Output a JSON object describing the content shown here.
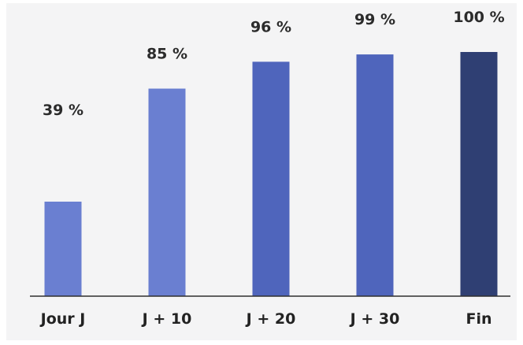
{
  "chart_data": {
    "type": "bar",
    "categories": [
      "Jour J",
      "J + 10",
      "J + 20",
      "J + 30",
      "Fin"
    ],
    "values": [
      39,
      85,
      96,
      99,
      100
    ],
    "value_labels": [
      "39 %",
      "85 %",
      "96 %",
      "99 %",
      "100 %"
    ],
    "ylim": [
      0,
      100
    ],
    "grid": false,
    "title": "",
    "xlabel": "",
    "ylabel": "",
    "colors": [
      "#6a7fd1",
      "#6a7fd1",
      "#4f65bc",
      "#4f65bc",
      "#2f3f73"
    ]
  }
}
